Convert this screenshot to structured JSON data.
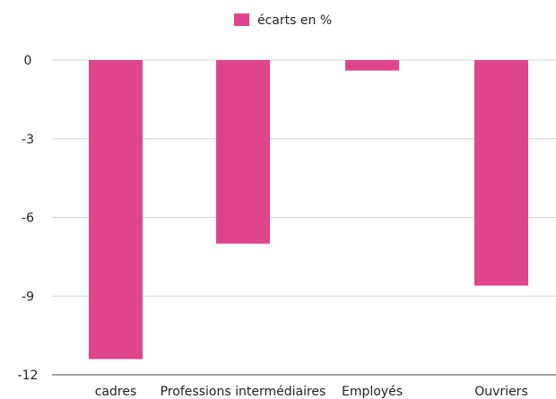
{
  "chart_data": {
    "type": "bar",
    "categories": [
      "cadres",
      "Professions intermédiaires",
      "Employés",
      "Ouvriers"
    ],
    "series": [
      {
        "name": "écarts en %",
        "values": [
          -11.4,
          -7.0,
          -0.4,
          -8.6
        ],
        "color": "#e0458c"
      }
    ],
    "title": "",
    "xlabel": "",
    "ylabel": "",
    "ylim": [
      -12,
      0
    ],
    "yticks": [
      0,
      -3,
      -6,
      -9,
      -12
    ],
    "grid": true,
    "legend_position": "top-center"
  }
}
